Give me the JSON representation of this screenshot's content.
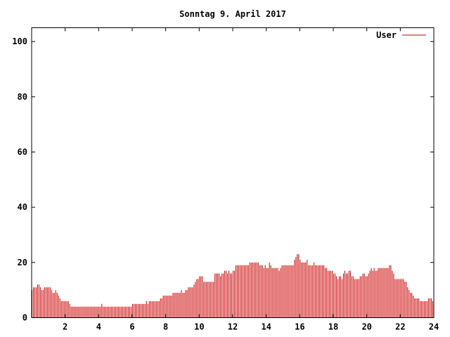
{
  "chart_data": {
    "type": "bar",
    "title": "Sonntag 9. April 2017",
    "xlabel": "",
    "ylabel": "",
    "xlim": [
      0,
      24
    ],
    "ylim": [
      0,
      105
    ],
    "x_ticks": [
      2,
      4,
      6,
      8,
      10,
      12,
      14,
      16,
      18,
      20,
      22,
      24
    ],
    "y_ticks": [
      0,
      20,
      40,
      60,
      80,
      100
    ],
    "grid": false,
    "legend": "top-right",
    "series": [
      {
        "name": "User",
        "color": "#cc0000",
        "sample_interval_minutes": 5,
        "values": [
          10,
          11,
          11,
          11,
          12,
          12,
          11,
          10,
          10,
          11,
          11,
          11,
          11,
          11,
          10,
          9,
          9,
          10,
          9,
          8,
          7,
          6,
          6,
          6,
          6,
          6,
          6,
          5,
          4,
          4,
          4,
          4,
          4,
          4,
          4,
          4,
          4,
          4,
          4,
          4,
          4,
          4,
          4,
          4,
          4,
          4,
          4,
          4,
          4,
          4,
          5,
          4,
          4,
          4,
          4,
          4,
          4,
          4,
          4,
          4,
          4,
          4,
          4,
          4,
          4,
          4,
          4,
          4,
          4,
          4,
          4,
          4,
          5,
          5,
          5,
          5,
          5,
          5,
          5,
          5,
          5,
          5,
          6,
          5,
          6,
          6,
          6,
          6,
          6,
          6,
          6,
          6,
          7,
          7,
          8,
          8,
          8,
          8,
          8,
          8,
          8,
          9,
          9,
          9,
          9,
          9,
          9,
          10,
          9,
          9,
          10,
          10,
          11,
          11,
          11,
          11,
          12,
          13,
          14,
          14,
          15,
          15,
          15,
          13,
          13,
          13,
          13,
          13,
          13,
          13,
          13,
          16,
          16,
          16,
          16,
          15,
          16,
          16,
          17,
          17,
          16,
          17,
          16,
          16,
          17,
          17,
          19,
          19,
          19,
          19,
          19,
          19,
          19,
          19,
          19,
          19,
          20,
          20,
          20,
          20,
          20,
          20,
          20,
          19,
          19,
          19,
          18,
          19,
          18,
          18,
          20,
          19,
          18,
          18,
          18,
          18,
          18,
          17,
          18,
          19,
          19,
          19,
          19,
          19,
          19,
          19,
          19,
          19,
          21,
          22,
          23,
          23,
          21,
          20,
          20,
          20,
          20,
          21,
          19,
          19,
          19,
          19,
          20,
          19,
          19,
          19,
          19,
          19,
          19,
          19,
          18,
          18,
          17,
          17,
          17,
          17,
          16,
          16,
          15,
          14,
          15,
          15,
          14,
          16,
          17,
          16,
          16,
          17,
          17,
          15,
          15,
          14,
          14,
          14,
          14,
          15,
          15,
          16,
          16,
          15,
          15,
          16,
          17,
          18,
          17,
          18,
          17,
          17,
          18,
          18,
          18,
          18,
          18,
          18,
          18,
          18,
          19,
          19,
          17,
          16,
          14,
          14,
          14,
          14,
          14,
          14,
          14,
          13,
          13,
          11,
          10,
          9,
          9,
          8,
          7,
          7,
          7,
          7,
          6,
          6,
          6,
          6,
          6,
          6,
          7,
          7,
          7,
          6
        ]
      }
    ]
  }
}
